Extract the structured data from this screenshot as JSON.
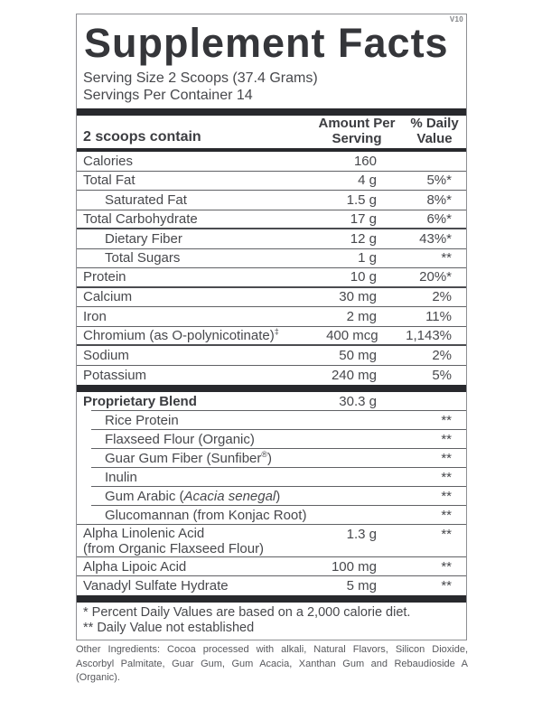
{
  "version_tag": "V10",
  "title": "Supplement Facts",
  "serving": {
    "size_line": "Serving Size 2 Scoops (37.4 Grams)",
    "servings_line": "Servings Per Container 14"
  },
  "header": {
    "contain": "2 scoops contain",
    "amount_line1": "Amount Per",
    "amount_line2": "Serving",
    "dv_line1": "% Daily",
    "dv_line2": "Value"
  },
  "main_rows": [
    {
      "label": "Calories",
      "amount": "160",
      "dv": ""
    },
    {
      "label": "Total Fat",
      "amount": "4 g",
      "dv": "5%*"
    },
    {
      "label": "Saturated Fat",
      "amount": "1.5 g",
      "dv": "8%*"
    },
    {
      "label": "Total Carbohydrate",
      "amount": "17 g",
      "dv": "6%*"
    },
    {
      "label": "Dietary Fiber",
      "amount": "12 g",
      "dv": "43%*"
    },
    {
      "label": "Total Sugars",
      "amount": "1 g",
      "dv": "**"
    },
    {
      "label": "Protein",
      "amount": "10 g",
      "dv": "20%*"
    },
    {
      "label": "Calcium",
      "amount": "30 mg",
      "dv": "2%"
    },
    {
      "label": "Iron",
      "amount": "2 mg",
      "dv": "11%"
    },
    {
      "label": "Chromium (as O-polynicotinate)",
      "sup": "‡",
      "amount": "400 mcg",
      "dv": "1,143%"
    },
    {
      "label": "Sodium",
      "amount": "50 mg",
      "dv": "2%"
    },
    {
      "label": "Potassium",
      "amount": "240 mg",
      "dv": "5%"
    }
  ],
  "blend_rows": [
    {
      "label": "Proprietary Blend",
      "amount": "30.3 g",
      "dv": ""
    },
    {
      "label": "Rice Protein",
      "amount": "",
      "dv": "**"
    },
    {
      "label": "Flaxseed Flour (Organic)",
      "amount": "",
      "dv": "**"
    },
    {
      "pre": "Guar Gum Fiber (Sunfiber",
      "sup": "®",
      "post": ")",
      "amount": "",
      "dv": "**"
    },
    {
      "label": "Inulin",
      "amount": "",
      "dv": "**"
    },
    {
      "pre": "Gum Arabic (",
      "italic": "Acacia senegal",
      "post": ")",
      "amount": "",
      "dv": "**"
    },
    {
      "label": "Glucomannan (from Konjac Root)",
      "amount": "",
      "dv": "**"
    },
    {
      "label": "Alpha Linolenic Acid",
      "label2": "(from Organic Flaxseed Flour)",
      "amount": "1.3 g",
      "dv": "**"
    },
    {
      "label": "Alpha Lipoic Acid",
      "amount": "100 mg",
      "dv": "**"
    },
    {
      "label": "Vanadyl Sulfate Hydrate",
      "amount": "5 mg",
      "dv": "**"
    }
  ],
  "footnotes": {
    "line1": "* Percent Daily Values are based on a 2,000 calorie diet.",
    "line2": "** Daily Value not established"
  },
  "other_ingredients": "Other Ingredients: Cocoa processed with alkali, Natural Flavors, Silicon Dioxide, Ascorbyl Palmitate, Guar Gum, Gum Acacia, Xanthan Gum and Rebaudioside A (Organic).",
  "colors": {
    "ink": "#47484c",
    "rule": "#606165",
    "bar": "#28292d"
  }
}
